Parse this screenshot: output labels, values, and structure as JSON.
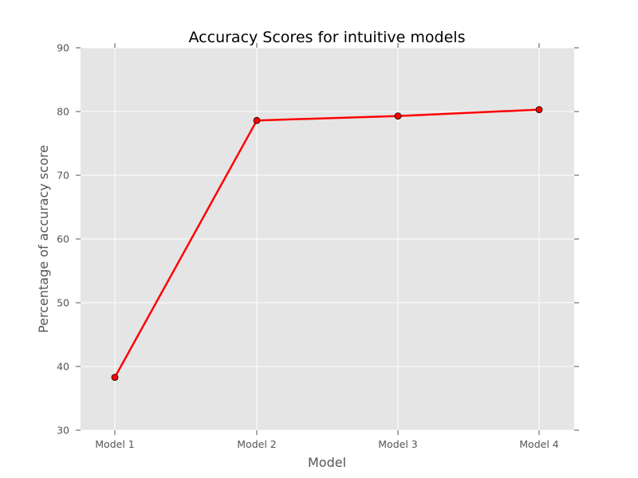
{
  "chart_data": {
    "type": "line",
    "title": "Accuracy Scores for intuitive models",
    "xlabel": "Model",
    "ylabel": "Percentage of accuracy score",
    "categories": [
      "Model 1",
      "Model 2",
      "Model 3",
      "Model 4"
    ],
    "series": [
      {
        "values": [
          38.3,
          78.6,
          79.3,
          80.3
        ]
      }
    ],
    "ylim": [
      30,
      90
    ],
    "yticks": [
      30,
      40,
      50,
      60,
      70,
      80,
      90
    ],
    "grid": true,
    "legend": "none",
    "colors": {
      "line": "#ff0000",
      "marker_fill": "#ff0000",
      "marker_edge": "#000000",
      "plot_background": "#e5e5e5",
      "grid": "#ffffff",
      "tick": "#555555"
    }
  }
}
